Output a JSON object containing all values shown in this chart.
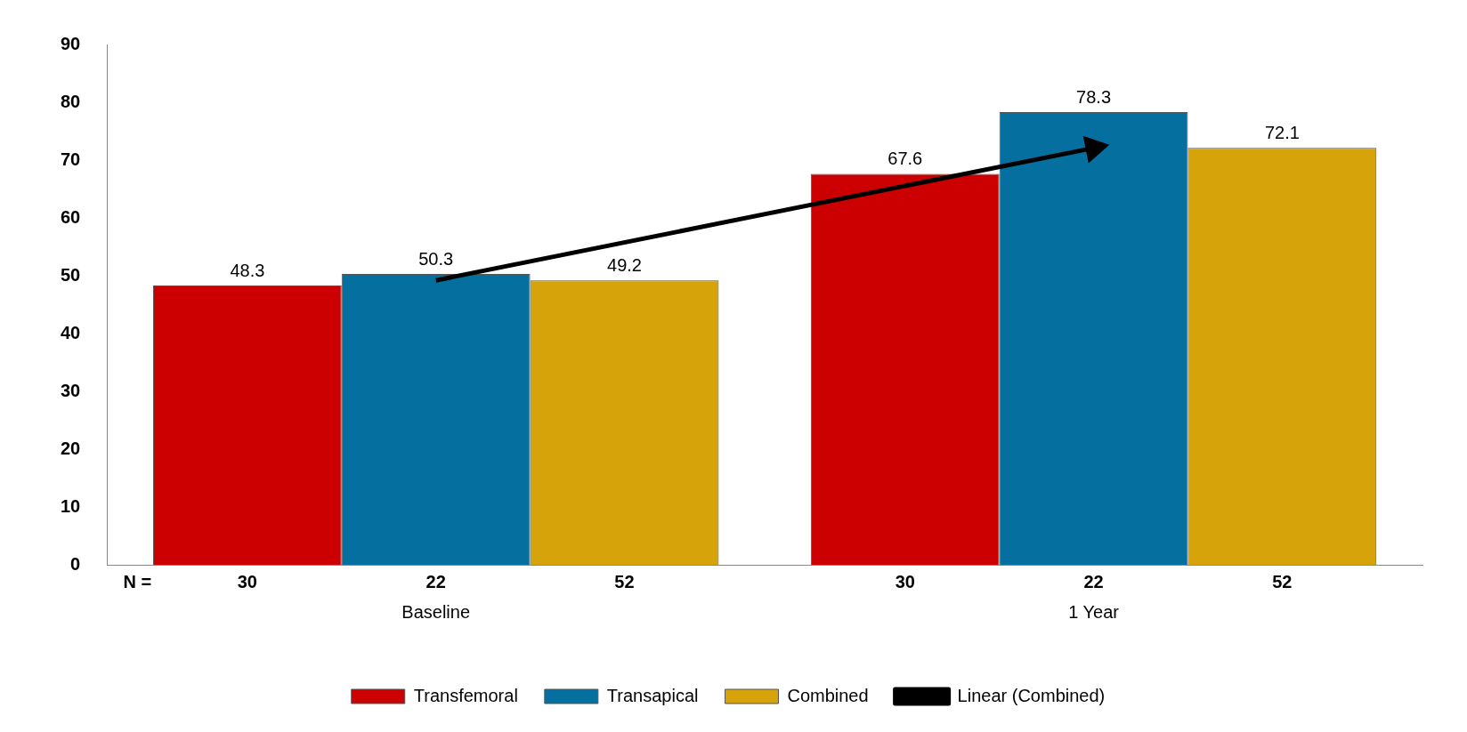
{
  "chart_data": {
    "type": "bar",
    "categories": [
      "Baseline",
      "1 Year"
    ],
    "series": [
      {
        "name": "Transfemoral",
        "color": "#cc0000",
        "values": [
          48.3,
          67.6
        ],
        "value_labels": [
          "48.3",
          "67.6"
        ]
      },
      {
        "name": "Transapical",
        "color": "#0570a0",
        "values": [
          50.3,
          78.3
        ],
        "value_labels": [
          "50.3",
          "78.3"
        ]
      },
      {
        "name": "Combined",
        "color": "#d6a40a",
        "values": [
          49.2,
          72.1
        ],
        "value_labels": [
          "49.2",
          "72.1"
        ]
      },
      {
        "name": "Linear (Combined)",
        "type": "line",
        "color": "#000000",
        "values": [
          49.2,
          72.1
        ]
      }
    ],
    "ylim": [
      0,
      90
    ],
    "yticks": [
      0,
      10,
      20,
      30,
      40,
      50,
      60,
      70,
      80,
      90
    ],
    "grid": false,
    "legend": "bottom",
    "annotations": [
      "N =",
      "30",
      "22",
      "52",
      "30",
      "22",
      "52"
    ]
  }
}
